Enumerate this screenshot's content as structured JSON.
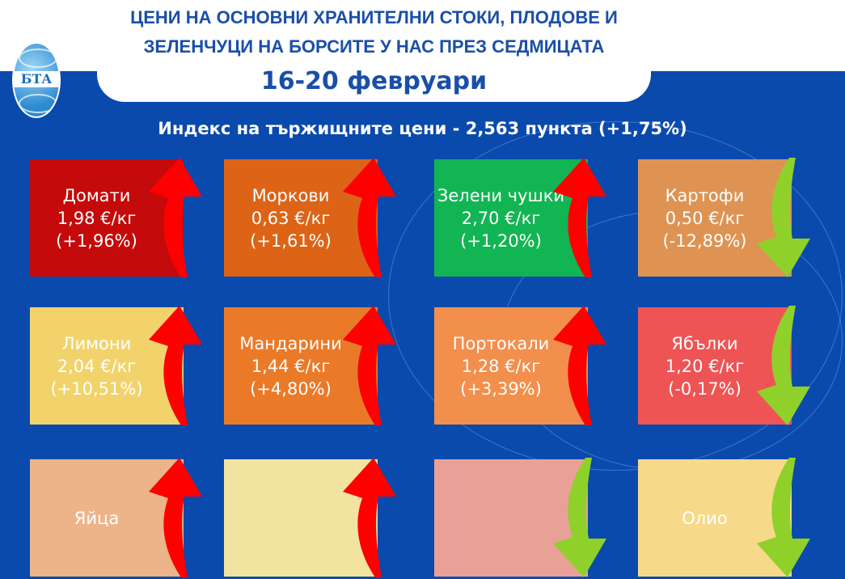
{
  "header": {
    "title_line1": "ЦЕНИ НА ОСНОВНИ ХРАНИТЕЛНИ СТОКИ, ПЛОДОВЕ И",
    "title_line2": "ЗЕЛЕНЧУЦИ НА БОРСИТЕ У НАС ПРЕЗ СЕДМИЦАТА",
    "date": "16-20 февруари",
    "logo_text": "БТА"
  },
  "index_text": "Индекс на тържищните цени - 2,563 пункта (+1,75%)",
  "colors": {
    "background": "#0a4aad",
    "up_arrow": "#ff0000",
    "down_arrow": "#8fd12a"
  },
  "cards": [
    {
      "name": "Домати",
      "price": "1,98 €/кг",
      "change": "(+1,96%)",
      "trend": "up",
      "color": "#c40a0a",
      "icon": "tomato-icon"
    },
    {
      "name": "Моркови",
      "price": "0,63 €/кг",
      "change": "(+1,61%)",
      "trend": "up",
      "color": "#dd6416",
      "icon": "carrot-icon"
    },
    {
      "name": "Зелени чушки",
      "price": "2,70 €/кг",
      "change": "(+1,20%)",
      "trend": "up",
      "color": "#12b553",
      "icon": "pepper-icon"
    },
    {
      "name": "Картофи",
      "price": "0,50 €/кг",
      "change": "(-12,89%)",
      "trend": "down",
      "color": "#de9352",
      "icon": "potato-icon"
    },
    {
      "name": "Лимони",
      "price": "2,04 €/кг",
      "change": "(+10,51%)",
      "trend": "up",
      "color": "#f2d36b",
      "icon": "lemon-icon"
    },
    {
      "name": "Мандарини",
      "price": "1,44 €/кг",
      "change": "(+4,80%)",
      "trend": "up",
      "color": "#ea7a28",
      "icon": "mandarin-icon"
    },
    {
      "name": "Портокали",
      "price": "1,28 €/кг",
      "change": "(+3,39%)",
      "trend": "up",
      "color": "#f38f4c",
      "icon": "orange-icon"
    },
    {
      "name": "Ябълки",
      "price": "1,20 €/кг",
      "change": "(-0,17%)",
      "trend": "down",
      "color": "#ef5454",
      "icon": "apple-icon"
    },
    {
      "name": "Яйца",
      "price": "",
      "change": "",
      "trend": "up",
      "color": "#edb389",
      "icon": "egg-icon"
    },
    {
      "name": "",
      "price": "",
      "change": "",
      "trend": "up",
      "color": "#f3e3a0",
      "icon": "cheese-icon"
    },
    {
      "name": "",
      "price": "",
      "change": "",
      "trend": "down",
      "color": "#e9a097",
      "icon": "meat-icon"
    },
    {
      "name": "Олио",
      "price": "",
      "change": "",
      "trend": "down",
      "color": "#f7d98a",
      "icon": "oil-icon"
    }
  ]
}
